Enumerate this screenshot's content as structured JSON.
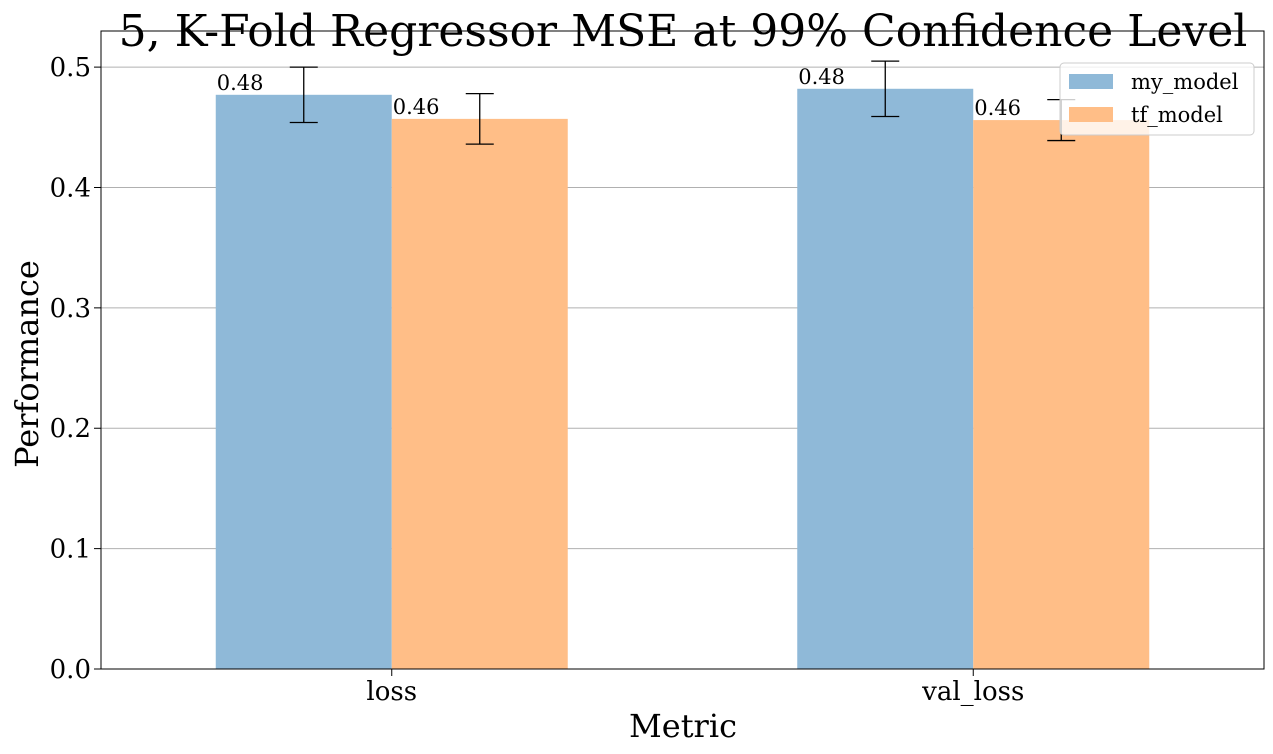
{
  "chart_data": {
    "type": "bar",
    "title": "5, K-Fold Regressor MSE at 99% Confidence Level",
    "xlabel": "Metric",
    "ylabel": "Performance",
    "categories": [
      "loss",
      "val_loss"
    ],
    "ylim": [
      0,
      0.53
    ],
    "yticks": [
      "0.0",
      "0.1",
      "0.2",
      "0.3",
      "0.4",
      "0.5"
    ],
    "grid": "horizontal",
    "legend_position": "top-right",
    "series": [
      {
        "name": "my_model",
        "color": "#8fb9d8",
        "values": [
          0.477,
          0.482
        ],
        "errors": [
          0.023,
          0.023
        ],
        "labels": [
          "0.48",
          "0.48"
        ]
      },
      {
        "name": "tf_model",
        "color": "#ffbe87",
        "values": [
          0.457,
          0.456
        ],
        "errors": [
          0.021,
          0.017
        ],
        "labels": [
          "0.46",
          "0.46"
        ]
      }
    ]
  }
}
